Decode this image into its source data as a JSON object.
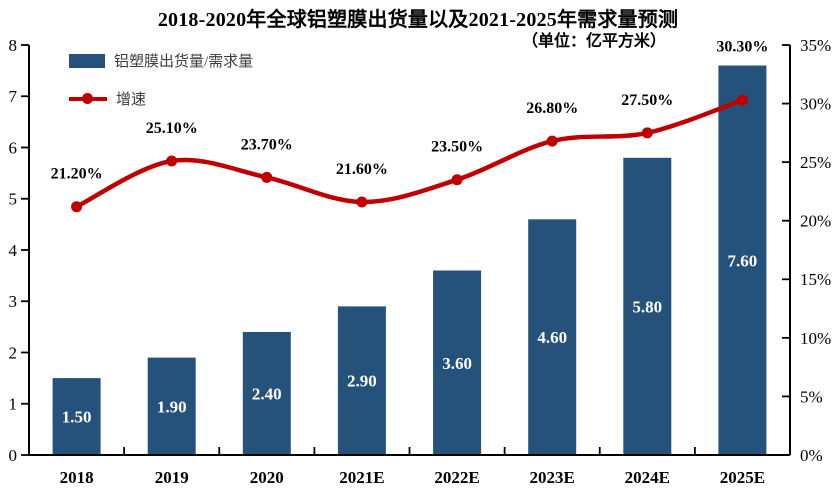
{
  "title": "2018-2020年全球铝塑膜出货量以及2021-2025年需求量预测",
  "subtitle": "（单位：亿平方米）",
  "colors": {
    "bar": "#25527B",
    "line": "#C00000",
    "axis": "#000000",
    "bar_value_label": "#FFFFFF",
    "data_label": "#000000",
    "legend_text": "#3D3D3D"
  },
  "chart_data": {
    "type": "bar",
    "combo": "bar+line",
    "title": "2018-2020年全球铝塑膜出货量以及2021-2025年需求量预测",
    "subtitle": "（单位：亿平方米）",
    "categories": [
      "2018",
      "2019",
      "2020",
      "2021E",
      "2022E",
      "2023E",
      "2024E",
      "2025E"
    ],
    "series": [
      {
        "name": "铝塑膜出货量/需求量",
        "type": "bar",
        "axis": "left",
        "color": "#25527B",
        "values": [
          1.5,
          1.9,
          2.4,
          2.9,
          3.6,
          4.6,
          5.8,
          7.6
        ],
        "labels": [
          "1.50",
          "1.90",
          "2.40",
          "2.90",
          "3.60",
          "4.60",
          "5.80",
          "7.60"
        ]
      },
      {
        "name": "增速",
        "type": "line",
        "axis": "right",
        "color": "#C00000",
        "values": [
          21.2,
          25.1,
          23.7,
          21.6,
          23.5,
          26.8,
          27.5,
          30.3
        ],
        "labels": [
          "21.20%",
          "25.10%",
          "23.70%",
          "21.60%",
          "23.50%",
          "26.80%",
          "27.50%",
          "30.30%"
        ]
      }
    ],
    "left_axis": {
      "min": 0,
      "max": 8,
      "step": 1,
      "tick_labels": [
        "0",
        "1",
        "2",
        "3",
        "4",
        "5",
        "6",
        "7",
        "8"
      ]
    },
    "right_axis": {
      "min": 0,
      "max": 35,
      "step": 5,
      "tick_labels": [
        "0%",
        "5%",
        "10%",
        "15%",
        "20%",
        "25%",
        "30%",
        "35%"
      ]
    },
    "grid": false,
    "legend_position": "top-left"
  }
}
